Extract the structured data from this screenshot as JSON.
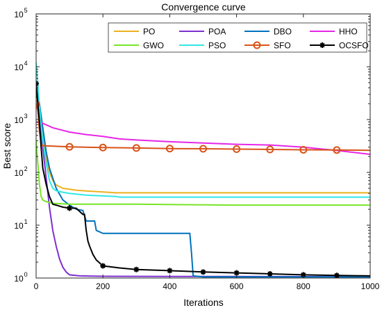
{
  "chart_data": {
    "type": "line",
    "title": "Convergence curve",
    "xlabel": "Iterations",
    "ylabel": "Best score",
    "x_scale": "linear",
    "y_scale": "log",
    "xlim": [
      0,
      1000
    ],
    "ylim": [
      1,
      100000
    ],
    "x_ticks": [
      "0",
      "200",
      "400",
      "600",
      "800",
      "1000"
    ],
    "y_ticks": [
      {
        "base": "10",
        "exp": "0"
      },
      {
        "base": "10",
        "exp": "1"
      },
      {
        "base": "10",
        "exp": "2"
      },
      {
        "base": "10",
        "exp": "3"
      },
      {
        "base": "10",
        "exp": "4"
      },
      {
        "base": "10",
        "exp": "5"
      }
    ],
    "grid": false,
    "legend_position": "top-right",
    "series": [
      {
        "name": "PO",
        "color": "#EDB120",
        "marker": "none",
        "points": [
          [
            0,
            4000
          ],
          [
            10,
            1200
          ],
          [
            20,
            500
          ],
          [
            30,
            200
          ],
          [
            40,
            100
          ],
          [
            50,
            70
          ],
          [
            60,
            58
          ],
          [
            80,
            50
          ],
          [
            100,
            48
          ],
          [
            120,
            46
          ],
          [
            140,
            45
          ],
          [
            240,
            41
          ],
          [
            1000,
            41
          ]
        ]
      },
      {
        "name": "POA",
        "color": "#7E2FD0",
        "marker": "none",
        "points": [
          [
            0,
            4600
          ],
          [
            5,
            2500
          ],
          [
            10,
            1000
          ],
          [
            15,
            550
          ],
          [
            20,
            300
          ],
          [
            30,
            80
          ],
          [
            40,
            22
          ],
          [
            50,
            8
          ],
          [
            60,
            4
          ],
          [
            70,
            2.3
          ],
          [
            80,
            1.6
          ],
          [
            90,
            1.3
          ],
          [
            100,
            1.15
          ],
          [
            130,
            1.1
          ],
          [
            200,
            1.08
          ],
          [
            500,
            1.07
          ],
          [
            1000,
            1.06
          ]
        ]
      },
      {
        "name": "DBO",
        "color": "#0072BD",
        "marker": "none",
        "points": [
          [
            0,
            4800
          ],
          [
            10,
            2000
          ],
          [
            20,
            700
          ],
          [
            30,
            250
          ],
          [
            40,
            120
          ],
          [
            60,
            50
          ],
          [
            80,
            30
          ],
          [
            100,
            24
          ],
          [
            120,
            20
          ],
          [
            140,
            19
          ],
          [
            150,
            12
          ],
          [
            175,
            12
          ],
          [
            180,
            8
          ],
          [
            200,
            7
          ],
          [
            240,
            7
          ],
          [
            250,
            7
          ],
          [
            460,
            7
          ],
          [
            465,
            3
          ],
          [
            470,
            1.1
          ],
          [
            500,
            1.05
          ],
          [
            1000,
            1.05
          ]
        ]
      },
      {
        "name": "HHO",
        "color": "#E626E6",
        "marker": "none",
        "points": [
          [
            0,
            900
          ],
          [
            20,
            850
          ],
          [
            50,
            700
          ],
          [
            100,
            580
          ],
          [
            150,
            520
          ],
          [
            200,
            480
          ],
          [
            250,
            430
          ],
          [
            300,
            410
          ],
          [
            400,
            380
          ],
          [
            500,
            360
          ],
          [
            600,
            340
          ],
          [
            700,
            330
          ],
          [
            800,
            300
          ],
          [
            900,
            260
          ],
          [
            1000,
            220
          ]
        ]
      },
      {
        "name": "GWO",
        "color": "#77E526",
        "marker": "none",
        "points": [
          [
            0,
            400
          ],
          [
            5,
            150
          ],
          [
            10,
            60
          ],
          [
            15,
            35
          ],
          [
            20,
            30
          ],
          [
            30,
            28
          ],
          [
            50,
            26
          ],
          [
            100,
            25
          ],
          [
            300,
            25
          ],
          [
            600,
            24
          ],
          [
            1000,
            24
          ]
        ]
      },
      {
        "name": "PSO",
        "color": "#33E6E6",
        "marker": "none",
        "points": [
          [
            0,
            12000
          ],
          [
            5,
            5000
          ],
          [
            10,
            1800
          ],
          [
            15,
            800
          ],
          [
            20,
            400
          ],
          [
            30,
            150
          ],
          [
            40,
            70
          ],
          [
            50,
            50
          ],
          [
            60,
            45
          ],
          [
            80,
            42
          ],
          [
            100,
            40
          ],
          [
            150,
            37
          ],
          [
            240,
            35
          ],
          [
            250,
            34
          ],
          [
            1000,
            34
          ]
        ]
      },
      {
        "name": "SFO",
        "color": "#D95319",
        "marker": "circle",
        "points": [
          [
            0,
            1950
          ],
          [
            5,
            1500
          ],
          [
            10,
            600
          ],
          [
            15,
            350
          ],
          [
            20,
            320
          ],
          [
            100,
            305
          ],
          [
            200,
            295
          ],
          [
            300,
            290
          ],
          [
            400,
            282
          ],
          [
            500,
            280
          ],
          [
            600,
            276
          ],
          [
            700,
            272
          ],
          [
            800,
            268
          ],
          [
            900,
            265
          ],
          [
            1000,
            262
          ]
        ]
      },
      {
        "name": "OCSFO",
        "color": "#000000",
        "marker": "asterisk",
        "points": [
          [
            0,
            4800
          ],
          [
            5,
            2000
          ],
          [
            10,
            900
          ],
          [
            15,
            300
          ],
          [
            20,
            120
          ],
          [
            30,
            60
          ],
          [
            40,
            35
          ],
          [
            50,
            25
          ],
          [
            60,
            24
          ],
          [
            80,
            22
          ],
          [
            100,
            21
          ],
          [
            120,
            21
          ],
          [
            140,
            16
          ],
          [
            145,
            16
          ],
          [
            150,
            8
          ],
          [
            155,
            5
          ],
          [
            160,
            4
          ],
          [
            170,
            2.8
          ],
          [
            180,
            2.2
          ],
          [
            200,
            1.7
          ],
          [
            250,
            1.55
          ],
          [
            300,
            1.45
          ],
          [
            400,
            1.38
          ],
          [
            500,
            1.3
          ],
          [
            600,
            1.25
          ],
          [
            700,
            1.2
          ],
          [
            800,
            1.15
          ],
          [
            900,
            1.12
          ],
          [
            1000,
            1.1
          ]
        ]
      }
    ]
  }
}
